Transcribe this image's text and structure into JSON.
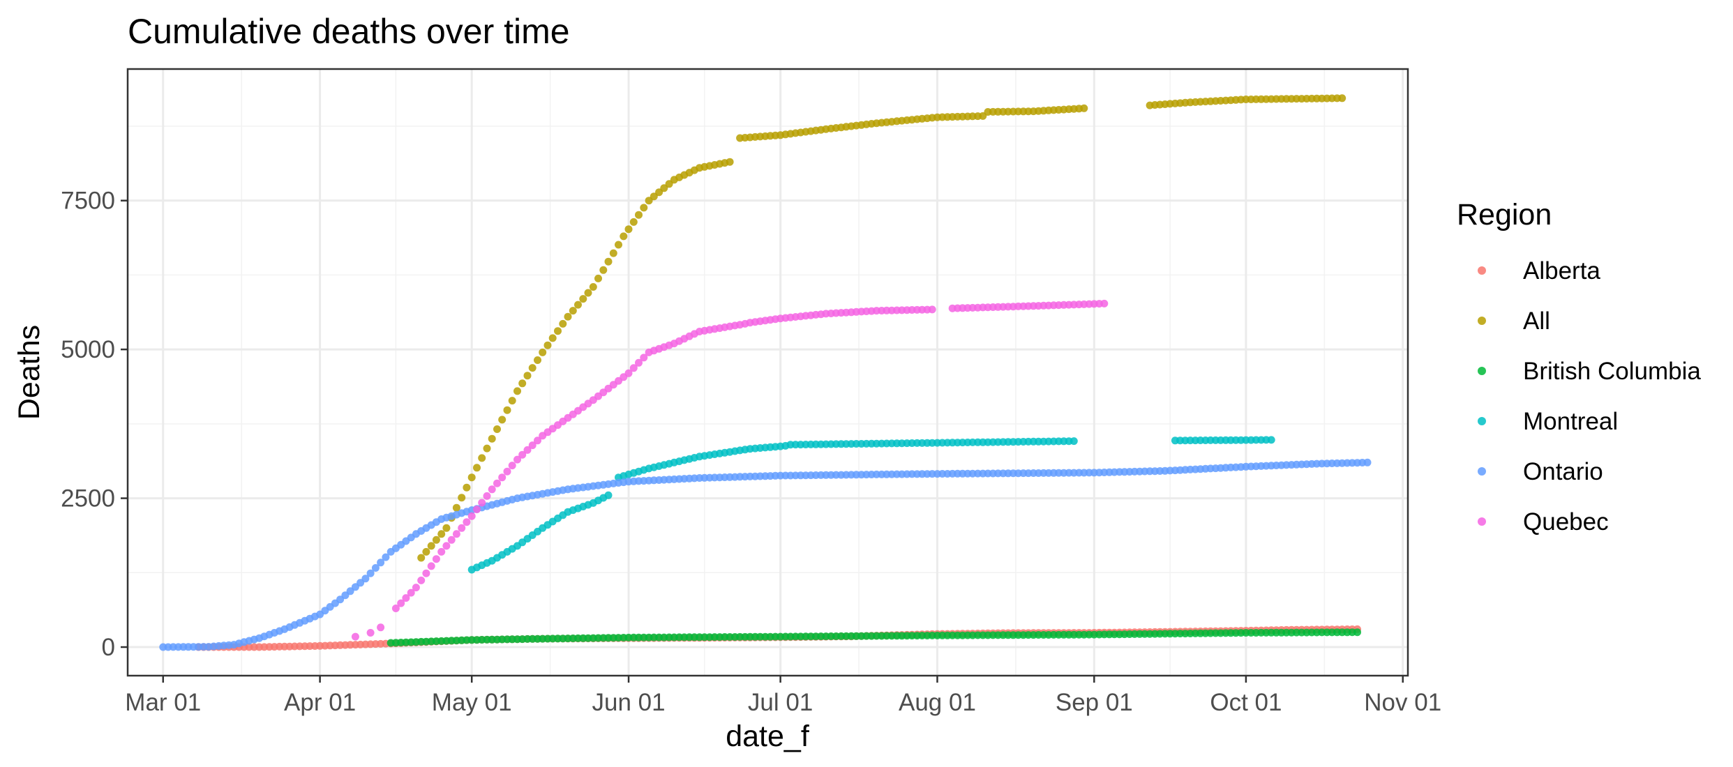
{
  "chart_data": {
    "type": "scatter",
    "title": "Cumulative deaths over time",
    "xlabel": "date_f",
    "ylabel": "Deaths",
    "xlim": [
      "2020-02-23",
      "2020-11-02"
    ],
    "ylim": [
      -480,
      9710
    ],
    "x_ticks": [
      "2020-03-01",
      "2020-04-01",
      "2020-05-01",
      "2020-06-01",
      "2020-07-01",
      "2020-08-01",
      "2020-09-01",
      "2020-10-01",
      "2020-11-01"
    ],
    "x_tick_labels": [
      "Mar 01",
      "Apr 01",
      "May 01",
      "Jun 01",
      "Jul 01",
      "Aug 01",
      "Sep 01",
      "Oct 01",
      "Nov 01"
    ],
    "y_ticks": [
      0,
      2500,
      5000,
      7500
    ],
    "y_tick_labels": [
      "0",
      "2500",
      "5000",
      "7500"
    ],
    "grid": true,
    "legend": {
      "title": "Region",
      "position": "right"
    },
    "series": [
      {
        "name": "Alberta",
        "color": "#F8766D",
        "segments": [
          {
            "start": "2020-03-08",
            "end": "2020-10-23",
            "points": [
              [
                "2020-03-08",
                0
              ],
              [
                "2020-03-20",
                0
              ],
              [
                "2020-04-01",
                20
              ],
              [
                "2020-04-15",
                60
              ],
              [
                "2020-05-01",
                120
              ],
              [
                "2020-05-15",
                140
              ],
              [
                "2020-06-01",
                150
              ],
              [
                "2020-06-15",
                155
              ],
              [
                "2020-07-01",
                165
              ],
              [
                "2020-07-15",
                180
              ],
              [
                "2020-08-01",
                220
              ],
              [
                "2020-08-15",
                235
              ],
              [
                "2020-09-01",
                240
              ],
              [
                "2020-09-15",
                255
              ],
              [
                "2020-10-01",
                275
              ],
              [
                "2020-10-10",
                290
              ],
              [
                "2020-10-23",
                300
              ]
            ]
          }
        ]
      },
      {
        "name": "All",
        "color": "#B79F00",
        "segments": [
          {
            "start": "2020-04-21",
            "end": "2020-06-21",
            "points": [
              [
                "2020-04-21",
                1500
              ],
              [
                "2020-04-26",
                2000
              ],
              [
                "2020-05-01",
                2850
              ],
              [
                "2020-05-05",
                3500
              ],
              [
                "2020-05-10",
                4300
              ],
              [
                "2020-05-15",
                4950
              ],
              [
                "2020-05-20",
                5550
              ],
              [
                "2020-05-25",
                6050
              ],
              [
                "2020-05-31",
                6900
              ],
              [
                "2020-06-05",
                7500
              ],
              [
                "2020-06-10",
                7850
              ],
              [
                "2020-06-15",
                8050
              ],
              [
                "2020-06-21",
                8150
              ]
            ]
          },
          {
            "start": "2020-06-23",
            "end": "2020-08-10",
            "points": [
              [
                "2020-06-23",
                8550
              ],
              [
                "2020-07-01",
                8600
              ],
              [
                "2020-07-10",
                8700
              ],
              [
                "2020-07-20",
                8800
              ],
              [
                "2020-08-01",
                8900
              ],
              [
                "2020-08-10",
                8920
              ]
            ]
          },
          {
            "start": "2020-08-11",
            "end": "2020-08-30",
            "points": [
              [
                "2020-08-11",
                8990
              ],
              [
                "2020-08-20",
                9000
              ],
              [
                "2020-08-30",
                9050
              ]
            ]
          },
          {
            "start": "2020-09-12",
            "end": "2020-10-20",
            "points": [
              [
                "2020-09-12",
                9100
              ],
              [
                "2020-09-20",
                9150
              ],
              [
                "2020-10-01",
                9200
              ],
              [
                "2020-10-20",
                9220
              ]
            ]
          }
        ]
      },
      {
        "name": "British Columbia",
        "color": "#00BA38",
        "segments": [
          {
            "start": "2020-04-15",
            "end": "2020-10-23",
            "points": [
              [
                "2020-04-15",
                70
              ],
              [
                "2020-05-01",
                120
              ],
              [
                "2020-05-15",
                140
              ],
              [
                "2020-06-01",
                160
              ],
              [
                "2020-07-01",
                175
              ],
              [
                "2020-08-01",
                195
              ],
              [
                "2020-09-01",
                210
              ],
              [
                "2020-10-01",
                240
              ],
              [
                "2020-10-23",
                250
              ]
            ]
          }
        ]
      },
      {
        "name": "Montreal",
        "color": "#00BFC4",
        "segments": [
          {
            "start": "2020-05-01",
            "end": "2020-05-28",
            "points": [
              [
                "2020-05-01",
                1300
              ],
              [
                "2020-05-05",
                1450
              ],
              [
                "2020-05-10",
                1700
              ],
              [
                "2020-05-15",
                2000
              ],
              [
                "2020-05-20",
                2270
              ],
              [
                "2020-05-25",
                2420
              ],
              [
                "2020-05-28",
                2550
              ]
            ]
          },
          {
            "start": "2020-05-30",
            "end": "2020-07-02",
            "points": [
              [
                "2020-05-30",
                2850
              ],
              [
                "2020-06-05",
                3000
              ],
              [
                "2020-06-15",
                3200
              ],
              [
                "2020-06-25",
                3330
              ],
              [
                "2020-07-02",
                3380
              ]
            ]
          },
          {
            "start": "2020-07-03",
            "end": "2020-08-28",
            "points": [
              [
                "2020-07-03",
                3400
              ],
              [
                "2020-08-28",
                3460
              ]
            ]
          },
          {
            "start": "2020-09-17",
            "end": "2020-10-06",
            "points": [
              [
                "2020-09-17",
                3470
              ],
              [
                "2020-10-06",
                3480
              ]
            ]
          }
        ]
      },
      {
        "name": "Ontario",
        "color": "#619CFF",
        "segments": [
          {
            "start": "2020-03-01",
            "end": "2020-10-25",
            "points": [
              [
                "2020-03-01",
                0
              ],
              [
                "2020-03-10",
                5
              ],
              [
                "2020-03-15",
                40
              ],
              [
                "2020-03-20",
                150
              ],
              [
                "2020-03-25",
                300
              ],
              [
                "2020-04-01",
                550
              ],
              [
                "2020-04-05",
                800
              ],
              [
                "2020-04-10",
                1150
              ],
              [
                "2020-04-15",
                1600
              ],
              [
                "2020-04-20",
                1900
              ],
              [
                "2020-04-25",
                2150
              ],
              [
                "2020-05-01",
                2300
              ],
              [
                "2020-05-10",
                2500
              ],
              [
                "2020-05-20",
                2650
              ],
              [
                "2020-06-01",
                2780
              ],
              [
                "2020-06-15",
                2840
              ],
              [
                "2020-07-01",
                2880
              ],
              [
                "2020-07-20",
                2900
              ],
              [
                "2020-08-01",
                2910
              ],
              [
                "2020-09-01",
                2930
              ],
              [
                "2020-09-15",
                2960
              ],
              [
                "2020-10-01",
                3030
              ],
              [
                "2020-10-15",
                3080
              ],
              [
                "2020-10-25",
                3100
              ]
            ]
          }
        ]
      },
      {
        "name": "Quebec",
        "color": "#F564E3",
        "segments": [
          {
            "start": "2020-04-08",
            "end": "2020-04-08",
            "points": [
              [
                "2020-04-08",
                175
              ]
            ]
          },
          {
            "start": "2020-04-11",
            "end": "2020-04-11",
            "points": [
              [
                "2020-04-11",
                240
              ]
            ]
          },
          {
            "start": "2020-04-13",
            "end": "2020-04-13",
            "points": [
              [
                "2020-04-13",
                330
              ]
            ]
          },
          {
            "start": "2020-04-16",
            "end": "2020-06-24",
            "points": [
              [
                "2020-04-16",
                650
              ],
              [
                "2020-04-20",
                1000
              ],
              [
                "2020-04-25",
                1600
              ],
              [
                "2020-05-01",
                2200
              ],
              [
                "2020-05-05",
                2650
              ],
              [
                "2020-05-10",
                3150
              ],
              [
                "2020-05-15",
                3550
              ],
              [
                "2020-05-20",
                3850
              ],
              [
                "2020-05-25",
                4150
              ],
              [
                "2020-06-01",
                4600
              ],
              [
                "2020-06-05",
                4950
              ],
              [
                "2020-06-10",
                5100
              ],
              [
                "2020-06-15",
                5300
              ],
              [
                "2020-06-24",
                5430
              ]
            ]
          },
          {
            "start": "2020-06-25",
            "end": "2020-07-31",
            "points": [
              [
                "2020-06-25",
                5450
              ],
              [
                "2020-07-01",
                5520
              ],
              [
                "2020-07-10",
                5600
              ],
              [
                "2020-07-20",
                5650
              ],
              [
                "2020-07-31",
                5670
              ]
            ]
          },
          {
            "start": "2020-08-04",
            "end": "2020-09-03",
            "points": [
              [
                "2020-08-04",
                5690
              ],
              [
                "2020-08-20",
                5730
              ],
              [
                "2020-09-03",
                5770
              ]
            ]
          }
        ]
      }
    ]
  }
}
